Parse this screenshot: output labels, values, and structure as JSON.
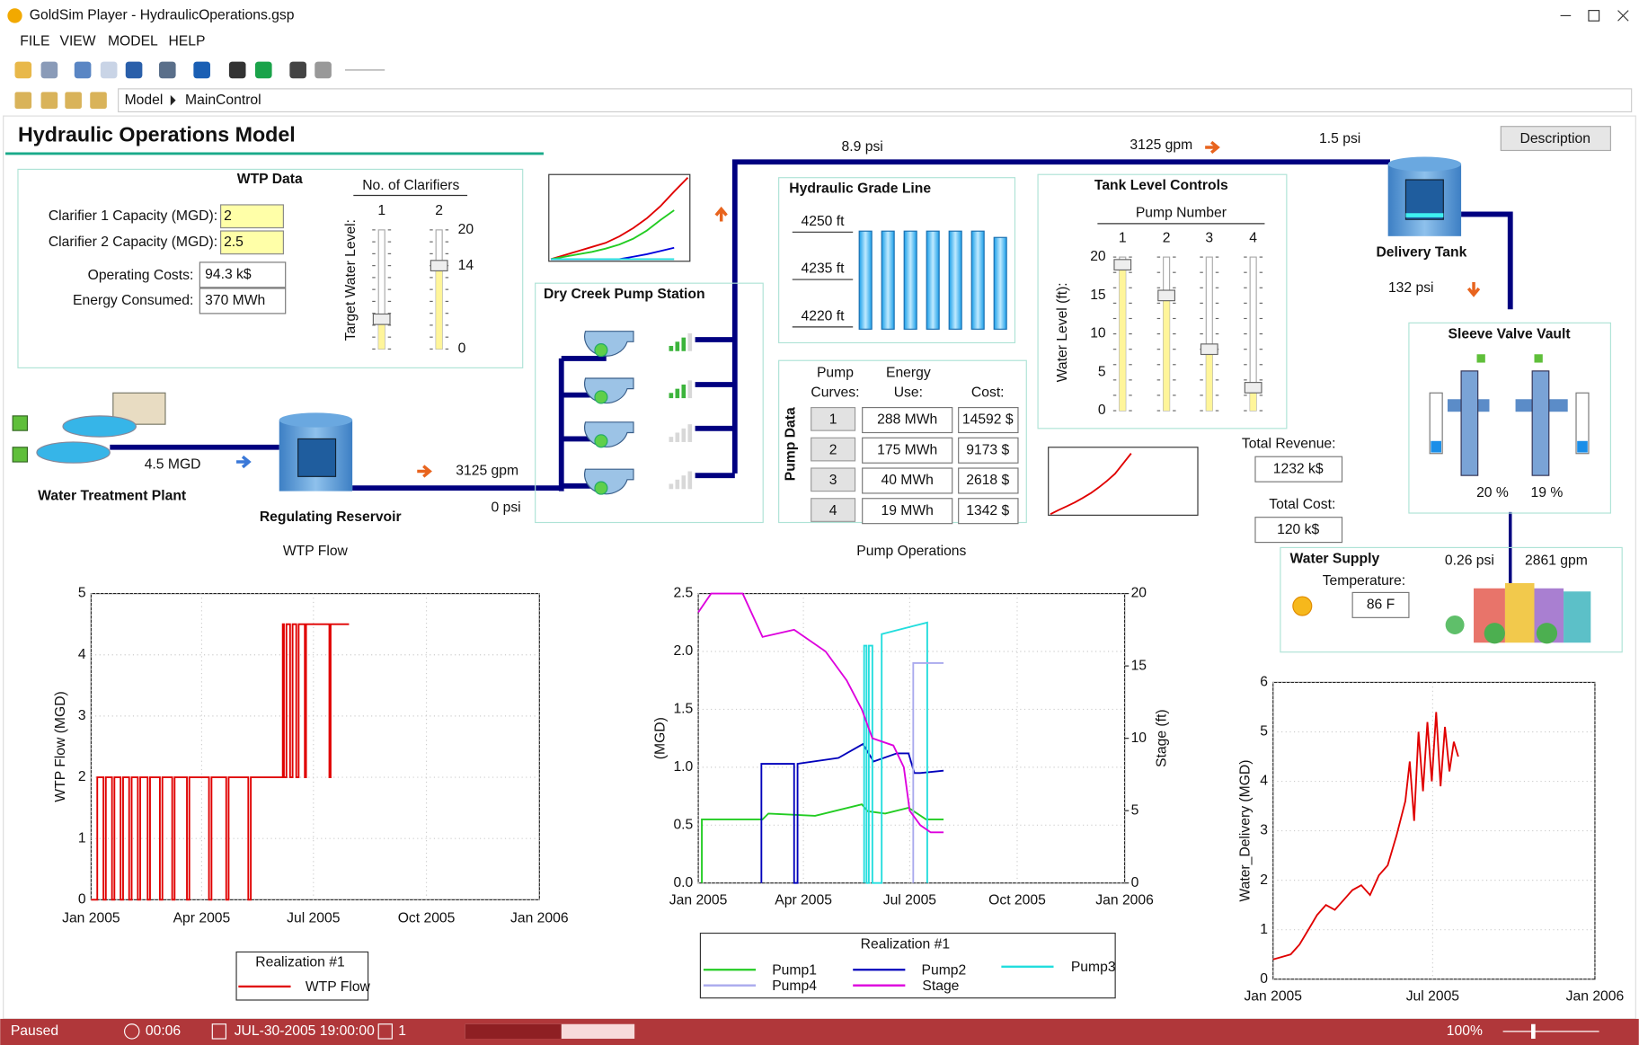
{
  "window": {
    "title": "GoldSim Player - HydraulicOperations.gsp"
  },
  "menu": [
    "FILE",
    "VIEW",
    "MODEL",
    "HELP"
  ],
  "breadcrumb": [
    "Model",
    "MainControl"
  ],
  "header": {
    "title": "Hydraulic Operations Model",
    "button": "Description"
  },
  "wtp_data": {
    "title": "WTP Data",
    "inputs": [
      {
        "label": "Clarifier 1 Capacity (MGD):",
        "value": "2"
      },
      {
        "label": "Clarifier 2 Capacity (MGD):",
        "value": "2.5"
      }
    ],
    "outputs": [
      {
        "label": "Operating Costs:",
        "value": "94.3 k$"
      },
      {
        "label": "Energy Consumed:",
        "value": "370 MWh"
      }
    ]
  },
  "clarifiers": {
    "title": "No. of Clarifiers",
    "axis_label": "Target Water Level:",
    "columns": [
      "1",
      "2"
    ],
    "values": [
      5,
      14
    ],
    "ylim": [
      0,
      20
    ],
    "yticks": [
      0,
      14,
      20
    ]
  },
  "tank_levels": {
    "title": "Tank Level Controls",
    "subtitle": "Pump Number",
    "axis_label": "Water Level (ft):",
    "columns": [
      "1",
      "2",
      "3",
      "4"
    ],
    "values": [
      19,
      15,
      8,
      3
    ],
    "ylim": [
      0,
      20
    ],
    "yticks": [
      0,
      5,
      10,
      15,
      20
    ]
  },
  "grade_line": {
    "title": "Hydraulic Grade Line",
    "values": [
      4247,
      4247,
      4247,
      4247,
      4247,
      4247,
      4245
    ],
    "ylim": [
      4216,
      4253
    ],
    "yticks": [
      {
        "value": 4220,
        "label": "4220 ft"
      },
      {
        "value": 4235,
        "label": "4235 ft"
      },
      {
        "value": 4250,
        "label": "4250 ft"
      }
    ]
  },
  "pump_station": {
    "title": "Dry Creek Pump Station"
  },
  "pump_data": {
    "title": "Pump Data",
    "headers": [
      [
        "Pump",
        "Curves:"
      ],
      [
        "Energy",
        "Use:"
      ],
      [
        "Cost:"
      ]
    ],
    "rows": [
      [
        "1",
        "288 MWh",
        "14592 $"
      ],
      [
        "2",
        "175 MWh",
        "9173 $"
      ],
      [
        "3",
        "40 MWh",
        "2618 $"
      ],
      [
        "4",
        "19 MWh",
        "1342 $"
      ]
    ]
  },
  "labels": {
    "wtp": "Water Treatment Plant",
    "wtp_flow": "4.5 MGD",
    "reservoir": "Regulating Reservoir",
    "res_flow": "3125 gpm",
    "res_pressure": "0 psi",
    "main_pressure": "8.9 psi",
    "main_flow": "3125 gpm",
    "tank_in_pressure": "1.5 psi",
    "tank": "Delivery Tank",
    "tank_out_pressure": "132 psi",
    "vault": "Sleeve Valve Vault",
    "valve1": "20 %",
    "valve2": "19 %",
    "revenue_label": "Total Revenue:",
    "revenue": "1232 k$",
    "cost_label": "Total Cost:",
    "cost": "120 k$",
    "supply": "Water Supply",
    "temp_label": "Temperature:",
    "temp": "86 F",
    "supply_pressure": "0.26 psi",
    "supply_flow": "2861 gpm"
  },
  "status": {
    "state": "Paused",
    "elapsed": "00:06",
    "date": "JUL-30-2005 19:00:00",
    "realization": "1",
    "zoom": "100%"
  },
  "chart_data": [
    {
      "type": "line",
      "title": "WTP Flow",
      "y_label": "WTP Flow (MGD)",
      "grid": true,
      "legend": "bottom",
      "legend_title": "Realization #1",
      "xlim": [
        0,
        365
      ],
      "xticks": [
        {
          "value": 0,
          "label": "Jan 2005"
        },
        {
          "value": 90,
          "label": "Apr 2005"
        },
        {
          "value": 181,
          "label": "Jul 2005"
        },
        {
          "value": 273,
          "label": "Oct 2005"
        },
        {
          "value": 365,
          "label": "Jan 2006"
        }
      ],
      "ylim": [
        0,
        5
      ],
      "yticks": [
        0,
        1,
        2,
        3,
        4,
        5
      ],
      "series": [
        {
          "name": "WTP Flow",
          "color": "#e00000",
          "x": [
            0,
            5,
            5,
            10,
            10,
            12,
            12,
            17,
            17,
            19,
            19,
            24,
            24,
            26,
            26,
            31,
            31,
            33,
            33,
            38,
            38,
            40,
            40,
            46,
            46,
            48,
            48,
            56,
            56,
            58,
            58,
            66,
            66,
            68,
            68,
            78,
            78,
            80,
            80,
            96,
            96,
            98,
            98,
            110,
            110,
            112,
            112,
            128,
            128,
            130,
            130,
            156,
            156,
            157,
            157,
            159,
            159,
            162,
            162,
            164,
            164,
            167,
            167,
            169,
            169,
            174,
            174,
            175,
            175,
            194,
            194,
            195,
            195,
            210
          ],
          "values": [
            0,
            0,
            2,
            2,
            0,
            0,
            2,
            2,
            0,
            0,
            2,
            2,
            0,
            0,
            2,
            2,
            0,
            0,
            2,
            2,
            0,
            0,
            2,
            2,
            0,
            0,
            2,
            2,
            0,
            0,
            2,
            2,
            0,
            0,
            2,
            2,
            0,
            0,
            2,
            2,
            0,
            0,
            2,
            2,
            0,
            0,
            2,
            2,
            0,
            0,
            2,
            2,
            4.5,
            4.5,
            2,
            2,
            4.5,
            4.5,
            2,
            2,
            4.5,
            4.5,
            2,
            2,
            4.5,
            4.5,
            2,
            2,
            4.5,
            4.5,
            2,
            2,
            4.5,
            4.5
          ]
        }
      ]
    },
    {
      "type": "line",
      "title": "Pump Operations",
      "y_label": "(MGD)",
      "y2_label": "Stage (ft)",
      "grid": true,
      "legend": "bottom",
      "legend_title": "Realization #1",
      "xlim": [
        0,
        365
      ],
      "xticks": [
        {
          "value": 0,
          "label": "Jan 2005"
        },
        {
          "value": 90,
          "label": "Apr 2005"
        },
        {
          "value": 181,
          "label": "Jul 2005"
        },
        {
          "value": 273,
          "label": "Oct 2005"
        },
        {
          "value": 365,
          "label": "Jan 2006"
        }
      ],
      "ylim": [
        0,
        2.5
      ],
      "yticks": [
        {
          "value": 0,
          "label": "0.0"
        },
        0.5,
        {
          "value": 1,
          "label": "1.0"
        },
        1.5,
        {
          "value": 2,
          "label": "2.0"
        },
        2.5
      ],
      "y2lim": [
        0,
        20
      ],
      "y2ticks": [
        0,
        5,
        10,
        15,
        20
      ],
      "series": [
        {
          "name": "Pump1",
          "color": "#22cc22",
          "x": [
            3,
            3,
            55,
            60,
            100,
            140,
            145,
            160,
            180,
            195,
            210
          ],
          "values": [
            0,
            0.55,
            0.55,
            0.6,
            0.58,
            0.68,
            0.62,
            0.6,
            0.65,
            0.55,
            0.55
          ]
        },
        {
          "name": "Pump2",
          "color": "#0000bb",
          "x": [
            54,
            54,
            82,
            82,
            85,
            85,
            120,
            141,
            150,
            170,
            180,
            185,
            190,
            210
          ],
          "values": [
            0,
            1.03,
            1.03,
            0,
            0,
            1.03,
            1.08,
            1.2,
            1.05,
            1.12,
            1.12,
            0.95,
            0.95,
            0.97
          ]
        },
        {
          "name": "Pump3",
          "color": "#22dddd",
          "x": [
            142,
            142,
            144,
            144,
            146,
            146,
            149,
            149,
            157,
            157,
            196,
            196
          ],
          "values": [
            0,
            2.05,
            2.05,
            0,
            0,
            2.05,
            2.05,
            0,
            0,
            2.15,
            2.25,
            0
          ]
        },
        {
          "name": "Pump4",
          "color": "#aaaaee",
          "x": [
            184,
            184,
            210
          ],
          "values": [
            0,
            1.9,
            1.9
          ]
        },
        {
          "name": "Stage",
          "color": "#dd00dd",
          "axis": "y2",
          "x": [
            0,
            11,
            38,
            55,
            82,
            91,
            109,
            127,
            140,
            149,
            167,
            176,
            181,
            190,
            199,
            210
          ],
          "values": [
            18.7,
            20,
            20,
            17,
            17.5,
            17,
            16,
            14,
            12,
            10,
            9.5,
            8,
            5,
            4,
            3.5,
            3.5
          ]
        }
      ]
    },
    {
      "type": "line",
      "y_label": "Water_Delivery (MGD)",
      "grid": true,
      "xlim": [
        0,
        365
      ],
      "xticks": [
        {
          "value": 0,
          "label": "Jan 2005"
        },
        {
          "value": 181,
          "label": "Jul 2005"
        },
        {
          "value": 365,
          "label": "Jan 2006"
        }
      ],
      "ylim": [
        0,
        6
      ],
      "yticks": [
        0,
        1,
        2,
        3,
        4,
        5,
        6
      ],
      "series": [
        {
          "color": "#e00000",
          "x": [
            0,
            10,
            20,
            30,
            40,
            50,
            60,
            70,
            80,
            90,
            100,
            110,
            120,
            130,
            140,
            150,
            155,
            160,
            165,
            170,
            175,
            180,
            185,
            190,
            195,
            200,
            205,
            210
          ],
          "values": [
            0.4,
            0.45,
            0.5,
            0.7,
            1.0,
            1.3,
            1.5,
            1.4,
            1.6,
            1.8,
            1.9,
            1.7,
            2.1,
            2.3,
            2.9,
            3.6,
            4.4,
            3.2,
            5.0,
            3.8,
            5.2,
            4.0,
            5.4,
            3.9,
            5.1,
            4.2,
            4.8,
            4.5
          ]
        }
      ]
    },
    {
      "type": "sparkline",
      "xlim": [
        0,
        10
      ],
      "ylim": [
        0,
        10
      ],
      "series": [
        {
          "color": "#e00000",
          "x": [
            0,
            1,
            2,
            3,
            4,
            5,
            6,
            7,
            8,
            9,
            10
          ],
          "values": [
            0,
            0.5,
            1,
            1.5,
            2,
            2.8,
            3.8,
            5,
            6.5,
            8.3,
            10
          ]
        },
        {
          "color": "#22cc22",
          "x": [
            0,
            1,
            2,
            3,
            4,
            5,
            6,
            7,
            8,
            9
          ],
          "values": [
            0,
            0.3,
            0.6,
            0.9,
            1.3,
            1.8,
            2.5,
            3.5,
            4.8,
            6
          ]
        },
        {
          "color": "#0000dd",
          "x": [
            0,
            5,
            6,
            7,
            8,
            9
          ],
          "values": [
            0,
            0,
            0.3,
            0.6,
            1,
            1.4
          ]
        },
        {
          "color": "#22dddd",
          "x": [
            0,
            9
          ],
          "values": [
            0,
            0
          ]
        }
      ]
    },
    {
      "type": "sparkline",
      "xlim": [
        0,
        18
      ],
      "ylim": [
        0,
        16
      ],
      "series": [
        {
          "color": "#e00000",
          "x": [
            0,
            1,
            2,
            3,
            4,
            5,
            6,
            7,
            8,
            9,
            10
          ],
          "values": [
            0,
            1,
            1.9,
            2.9,
            4,
            5.2,
            6.6,
            8.2,
            10,
            12.5,
            15
          ]
        }
      ]
    }
  ]
}
